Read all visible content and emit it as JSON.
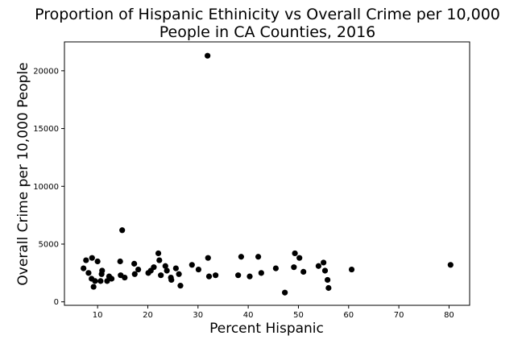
{
  "chart_data": {
    "type": "scatter",
    "title_line1": "Proportion of Hispanic Ethinicity vs Overall Crime per 10,000",
    "title_line2": "People in CA Counties, 2016",
    "xlabel": "Percent Hispanic",
    "ylabel": "Overall Crime per 10,000 People",
    "xlim": [
      3.4,
      84.1
    ],
    "ylim": [
      -300,
      22500
    ],
    "xticks": [
      10,
      20,
      30,
      40,
      50,
      60,
      70,
      80
    ],
    "yticks": [
      0,
      5000,
      10000,
      15000,
      20000
    ],
    "xtick_labels": [
      "10",
      "20",
      "30",
      "40",
      "50",
      "60",
      "70",
      "80"
    ],
    "ytick_labels": [
      "0",
      "5000",
      "10000",
      "15000",
      "20000"
    ],
    "grid": false,
    "marker_color": "#000000",
    "x": [
      7.2,
      7.7,
      8.2,
      8.8,
      8.9,
      9.2,
      9.5,
      10.0,
      10.6,
      10.8,
      10.9,
      11.9,
      12.3,
      12.8,
      14.5,
      14.6,
      14.9,
      15.4,
      17.3,
      17.4,
      18.1,
      20.1,
      20.6,
      21.2,
      22.1,
      22.3,
      22.6,
      23.5,
      23.8,
      24.6,
      24.7,
      25.6,
      26.2,
      26.5,
      28.8,
      30.1,
      31.9,
      32.0,
      32.2,
      33.5,
      38.0,
      38.6,
      40.3,
      42.0,
      42.6,
      45.5,
      47.3,
      49.1,
      49.3,
      50.2,
      51.0,
      54.0,
      55.0,
      55.3,
      55.8,
      56.0,
      60.6,
      80.3
    ],
    "y": [
      2900,
      3600,
      2500,
      2000,
      3800,
      1300,
      1800,
      3500,
      1800,
      2400,
      2700,
      1800,
      2200,
      2000,
      3500,
      2300,
      6200,
      2100,
      3300,
      2400,
      2800,
      2500,
      2700,
      3000,
      4200,
      3600,
      2300,
      3100,
      2700,
      2100,
      1900,
      2900,
      2400,
      1400,
      3200,
      2800,
      21300,
      3800,
      2200,
      2300,
      2300,
      3900,
      2200,
      3900,
      2500,
      2900,
      800,
      3000,
      4200,
      3800,
      2600,
      3100,
      3400,
      2700,
      1900,
      1200,
      2800,
      3200
    ]
  }
}
